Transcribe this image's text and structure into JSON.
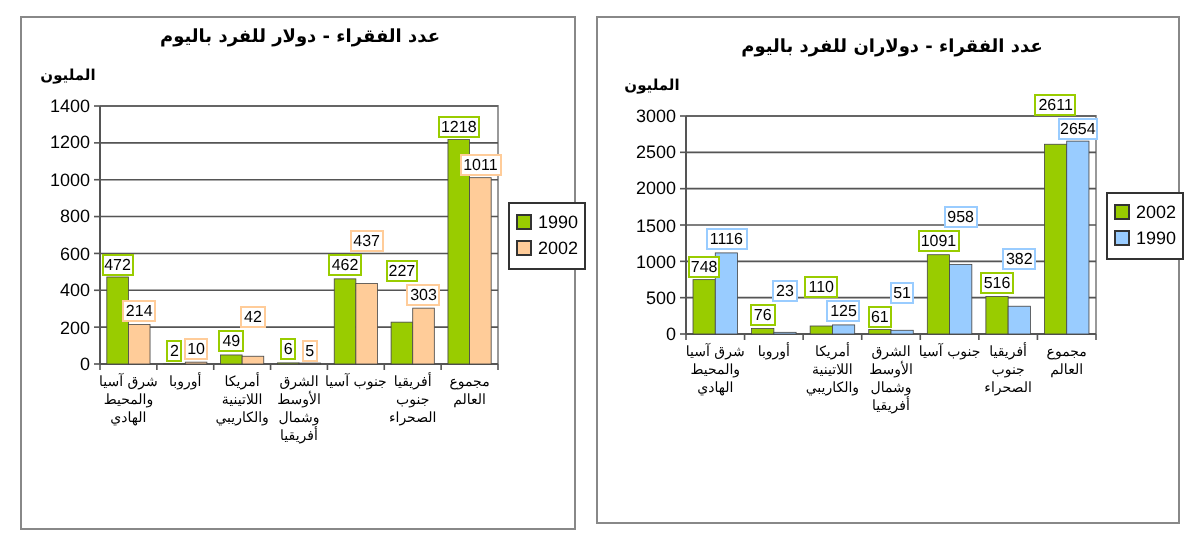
{
  "chart_data": [
    {
      "type": "bar",
      "title": "عدد الفقراء - دولار للفرد باليوم",
      "ylabel": "المليون",
      "categories": [
        "شرق آسيا والمحيط الهادي",
        "أوروبا",
        "أمريكا اللاتينية والكاريبي",
        "الشرق الأوسط وشمال أفريقيا",
        "جنوب آسيا",
        "أفريقيا جنوب الصحراء",
        "مجموع العالم"
      ],
      "series": [
        {
          "name": "1990",
          "color": "#99cc00",
          "values": [
            472,
            2,
            49,
            6,
            462,
            227,
            1218
          ]
        },
        {
          "name": "2002",
          "color": "#ffcc99",
          "values": [
            214,
            10,
            42,
            5,
            437,
            303,
            1011
          ]
        }
      ],
      "ylim": [
        0,
        1400
      ],
      "yticks": [
        0,
        200,
        400,
        600,
        800,
        1000,
        1200,
        1400
      ],
      "grid": "y",
      "legend": "right",
      "data_labels": true
    },
    {
      "type": "bar",
      "title": "عدد الفقراء - دولاران للفرد باليوم",
      "ylabel": "المليون",
      "categories": [
        "شرق آسيا والمحيط الهادي",
        "أوروبا",
        "أمريكا اللاتينية والكاريبي",
        "الشرق الأوسط وشمال أفريقيا",
        "جنوب آسيا",
        "أفريقيا جنوب الصحراء",
        "مجموع العالم"
      ],
      "series": [
        {
          "name": "2002",
          "color": "#99cc00",
          "values": [
            748,
            76,
            110,
            61,
            1091,
            516,
            2611
          ]
        },
        {
          "name": "1990",
          "color": "#99ccff",
          "values": [
            1116,
            23,
            125,
            51,
            958,
            382,
            2654
          ]
        }
      ],
      "ylim": [
        0,
        3000
      ],
      "yticks": [
        0,
        500,
        1000,
        1500,
        2000,
        2500,
        3000
      ],
      "grid": "y",
      "legend": "right",
      "data_labels": true
    }
  ]
}
